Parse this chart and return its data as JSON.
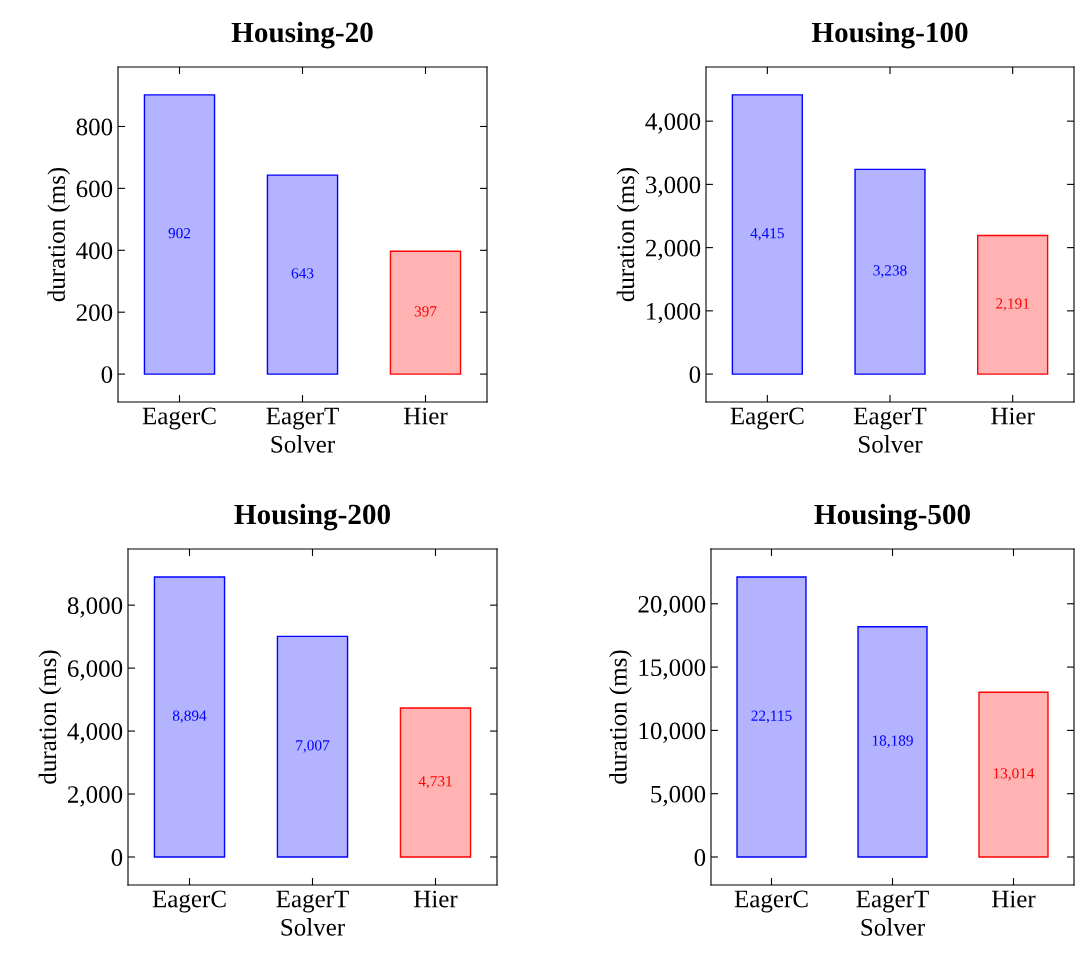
{
  "chart_data": [
    {
      "type": "bar",
      "title": "Housing-20",
      "xlabel": "Solver",
      "ylabel": "duration (ms)",
      "categories": [
        "EagerC",
        "EagerT",
        "Hier"
      ],
      "values": [
        902,
        643,
        397
      ],
      "colors": [
        "#b3b3ff",
        "#b3b3ff",
        "#ffb3b3"
      ],
      "value_labels": [
        "902",
        "643",
        "397"
      ],
      "ylim": [
        -90.2,
        992.2
      ],
      "yticks": [
        0,
        200,
        400,
        600,
        800
      ],
      "grid": false,
      "legend": false
    },
    {
      "type": "bar",
      "title": "Housing-100",
      "xlabel": "Solver",
      "ylabel": "duration (ms)",
      "categories": [
        "EagerC",
        "EagerT",
        "Hier"
      ],
      "values": [
        4415,
        3238,
        2191
      ],
      "colors": [
        "#b3b3ff",
        "#b3b3ff",
        "#ffb3b3"
      ],
      "value_labels": [
        "4,415",
        "3,238",
        "2,191"
      ],
      "ylim": [
        -441.5,
        4856.5
      ],
      "yticks": [
        0,
        {
          "value": 1000,
          "label": "1,000"
        },
        {
          "value": 2000,
          "label": "2,000"
        },
        {
          "value": 3000,
          "label": "3,000"
        },
        {
          "value": 4000,
          "label": "4,000"
        }
      ],
      "grid": false,
      "legend": false
    },
    {
      "type": "bar",
      "title": "Housing-200",
      "xlabel": "Solver",
      "ylabel": "duration (ms)",
      "categories": [
        "EagerC",
        "EagerT",
        "Hier"
      ],
      "values": [
        8894,
        7007,
        4731
      ],
      "colors": [
        "#b3b3ff",
        "#b3b3ff",
        "#ffb3b3"
      ],
      "value_labels": [
        "8,894",
        "7,007",
        "4,731"
      ],
      "ylim": [
        -889.4,
        9783.4
      ],
      "yticks": [
        0,
        {
          "value": 2000,
          "label": "2,000"
        },
        {
          "value": 4000,
          "label": "4,000"
        },
        {
          "value": 6000,
          "label": "6,000"
        },
        {
          "value": 8000,
          "label": "8,000"
        }
      ],
      "grid": false,
      "legend": false
    },
    {
      "type": "bar",
      "title": "Housing-500",
      "xlabel": "Solver",
      "ylabel": "duration (ms)",
      "categories": [
        "EagerC",
        "EagerT",
        "Hier"
      ],
      "values": [
        22115,
        18189,
        13014
      ],
      "colors": [
        "#b3b3ff",
        "#b3b3ff",
        "#ffb3b3"
      ],
      "value_labels": [
        "22,115",
        "18,189",
        "13,014"
      ],
      "ylim": [
        -2211.5,
        24326.5
      ],
      "yticks": [
        0,
        {
          "value": 5000,
          "label": "5,000"
        },
        {
          "value": 10000,
          "label": "10,000"
        },
        {
          "value": 15000,
          "label": "15,000"
        },
        {
          "value": 20000,
          "label": "20,000"
        }
      ],
      "grid": false,
      "legend": false
    }
  ]
}
